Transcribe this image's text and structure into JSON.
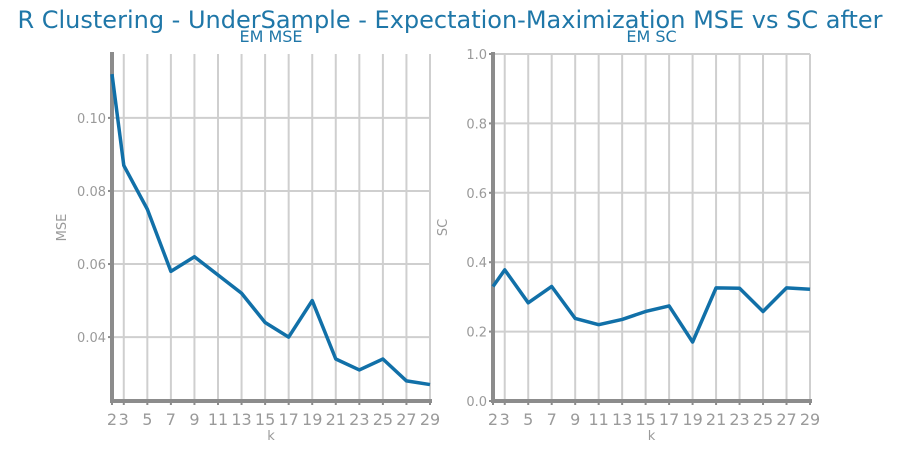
{
  "title": "R Clustering - UnderSample - Expectation-Maximization MSE vs SC after",
  "colors": {
    "line": "#1170a8",
    "title": "#1f77a8",
    "grid": "#cfcfcf",
    "axis": "#8c8c8c",
    "text": "#9a9a9a"
  },
  "chart_data": [
    {
      "type": "line",
      "title": "EM MSE",
      "xlabel": "k",
      "ylabel": "MSE",
      "x": [
        2,
        3,
        5,
        7,
        9,
        11,
        13,
        15,
        17,
        19,
        21,
        23,
        25,
        27,
        29
      ],
      "xticks": [
        2,
        3,
        5,
        7,
        9,
        11,
        13,
        15,
        17,
        19,
        21,
        23,
        25,
        27,
        29
      ],
      "series": [
        {
          "values": [
            0.112,
            0.087,
            0.075,
            0.058,
            0.062,
            0.057,
            0.052,
            0.044,
            0.04,
            0.05,
            0.034,
            0.031,
            0.034,
            0.028,
            0.027
          ]
        }
      ],
      "yticks": [
        0.04,
        0.06,
        0.08,
        0.1
      ],
      "ytick_labels": [
        "0.04",
        "0.06",
        "0.08",
        "0.10"
      ],
      "xlim": [
        2,
        29
      ],
      "ylim": [
        0.0225,
        0.1175
      ],
      "grid": true
    },
    {
      "type": "line",
      "title": "EM SC",
      "xlabel": "k",
      "ylabel": "SC",
      "x": [
        2,
        3,
        5,
        7,
        9,
        11,
        13,
        15,
        17,
        19,
        21,
        23,
        25,
        27,
        29
      ],
      "xticks": [
        2,
        3,
        5,
        7,
        9,
        11,
        13,
        15,
        17,
        19,
        21,
        23,
        25,
        27,
        29
      ],
      "series": [
        {
          "values": [
            0.33,
            0.378,
            0.283,
            0.33,
            0.238,
            0.22,
            0.235,
            0.258,
            0.274,
            0.17,
            0.326,
            0.325,
            0.258,
            0.326,
            0.322
          ]
        }
      ],
      "yticks": [
        0.0,
        0.2,
        0.4,
        0.6,
        0.8,
        1.0
      ],
      "ytick_labels": [
        "0.0",
        "0.2",
        "0.4",
        "0.6",
        "0.8",
        "1.0"
      ],
      "xlim": [
        2,
        29
      ],
      "ylim": [
        0,
        1
      ],
      "grid": true
    }
  ]
}
